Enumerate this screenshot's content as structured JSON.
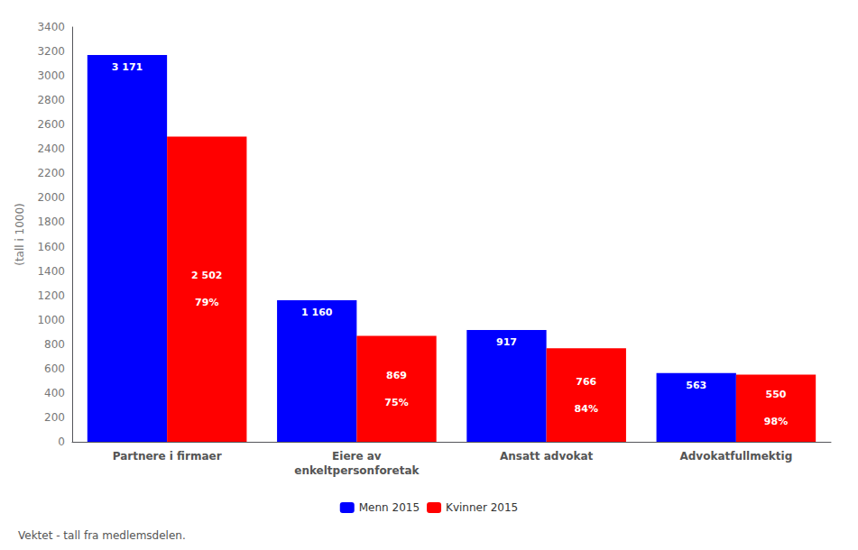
{
  "chart_data": {
    "type": "bar",
    "categories": [
      "Partnere i firmaer",
      "Eiere av\nenkeltpersonforetak",
      "Ansatt advokat",
      "Advokatfullmektig"
    ],
    "series": [
      {
        "name": "Menn 2015",
        "color": "#0000FF",
        "values": [
          3171,
          1160,
          917,
          563
        ],
        "value_labels": [
          "3 171",
          "1 160",
          "917",
          "563"
        ]
      },
      {
        "name": "Kvinner 2015",
        "color": "#FF0000",
        "values": [
          2502,
          869,
          766,
          550
        ],
        "value_labels": [
          "2 502",
          "869",
          "766",
          "550"
        ],
        "share_labels": [
          "79%",
          "75%",
          "84%",
          "98%"
        ]
      }
    ],
    "ylabel": "(tall i 1000)",
    "ylim": [
      0,
      3400
    ],
    "yticks": [
      0,
      200,
      400,
      600,
      800,
      1000,
      1200,
      1400,
      1600,
      1800,
      2000,
      2200,
      2400,
      2600,
      2800,
      3000,
      3200,
      3400
    ],
    "grid": false,
    "legend": "bottom",
    "data_labels": true,
    "annotations": [
      "Vektet - tall fra medlemsdelen."
    ]
  }
}
